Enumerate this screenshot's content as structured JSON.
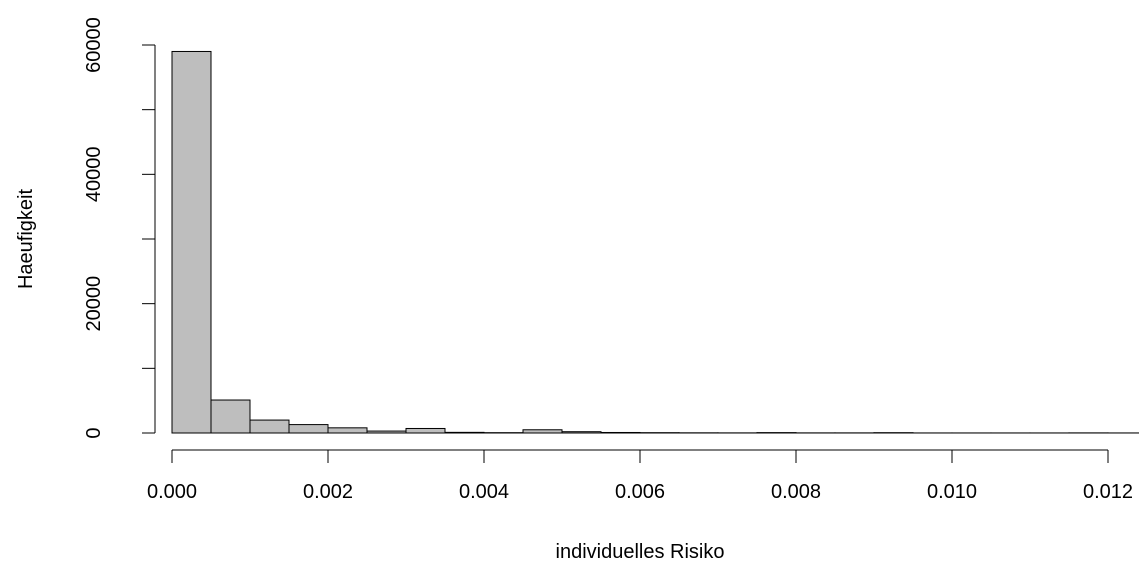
{
  "chart_data": {
    "type": "bar",
    "subtype": "histogram",
    "xlabel": "individuelles Risiko",
    "ylabel": "Haeufigkeit",
    "bin_width": 0.0005,
    "bin_starts": [
      0,
      0.0005,
      0.001,
      0.0015,
      0.002,
      0.0025,
      0.003,
      0.0035,
      0.004,
      0.0045,
      0.005,
      0.0055,
      0.006,
      0.0065,
      0.007,
      0.0075,
      0.008,
      0.0085,
      0.009,
      0.0095,
      0.01,
      0.0105,
      0.011,
      0.0115,
      0.012
    ],
    "values": [
      59000,
      5100,
      2000,
      1300,
      800,
      300,
      700,
      100,
      50,
      500,
      200,
      80,
      50,
      30,
      20,
      60,
      20,
      20,
      50,
      10,
      10,
      10,
      10,
      20,
      10
    ],
    "xlim": [
      0,
      0.012
    ],
    "ylim": [
      0,
      60000
    ],
    "x_ticks": [
      0,
      0.002,
      0.004,
      0.006,
      0.008,
      0.01,
      0.012
    ],
    "x_tick_labels": [
      "0.000",
      "0.002",
      "0.004",
      "0.006",
      "0.008",
      "0.010",
      "0.012"
    ],
    "y_ticks": [
      0,
      10000,
      20000,
      30000,
      40000,
      50000,
      60000
    ],
    "y_tick_labels": [
      "0",
      "",
      "20000",
      "",
      "40000",
      "",
      "60000"
    ],
    "bar_color": "#bebebe",
    "grid": false
  }
}
